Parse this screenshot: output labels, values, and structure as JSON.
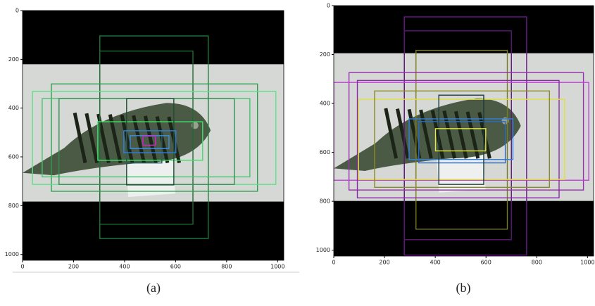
{
  "chart_data": [
    {
      "type": "boxes",
      "caption": "(a)",
      "xlim": [
        0,
        1024
      ],
      "ylim": [
        1024,
        0
      ],
      "xticks": [
        0,
        200,
        400,
        600,
        800,
        1000
      ],
      "yticks": [
        0,
        200,
        400,
        600,
        800,
        1000
      ],
      "boxes": [
        {
          "color": "#1f7a3a",
          "values": [
            303,
            104,
            728,
            935
          ]
        },
        {
          "color": "#1f6b35",
          "values": [
            303,
            166,
            668,
            876
          ]
        },
        {
          "color": "#2e9e4f",
          "values": [
            113,
            301,
            921,
            741
          ]
        },
        {
          "color": "#5fe08a",
          "values": [
            39,
            332,
            993,
            713
          ]
        },
        {
          "color": "#44c56c",
          "values": [
            77,
            361,
            891,
            682
          ]
        },
        {
          "color": "#2f8f4a",
          "values": [
            143,
            361,
            830,
            713
          ]
        },
        {
          "color": "#3ee06a",
          "values": [
            295,
            456,
            706,
            614
          ]
        },
        {
          "color": "#1e4d33",
          "values": [
            408,
            361,
            593,
            715
          ]
        },
        {
          "color": "#245e5a",
          "values": [
            408,
            493,
            546,
            625
          ]
        },
        {
          "color": "#2f7fe0",
          "values": [
            397,
            493,
            601,
            583
          ]
        },
        {
          "color": "#3a8ef0",
          "values": [
            422,
            513,
            574,
            566
          ]
        },
        {
          "color": "#d020d0",
          "values": [
            472,
            515,
            521,
            552
          ]
        }
      ]
    },
    {
      "type": "boxes",
      "caption": "(b)",
      "xlim": [
        0,
        1024
      ],
      "ylim": [
        1024,
        0
      ],
      "xticks": [
        0,
        200,
        400,
        600,
        800,
        1000
      ],
      "yticks": [
        0,
        200,
        400,
        600,
        800,
        1000
      ],
      "boxes": [
        {
          "color": "#6a1a8a",
          "values": [
            278,
            46,
            760,
            1020
          ]
        },
        {
          "color": "#5a1877",
          "values": [
            278,
            103,
            700,
            957
          ]
        },
        {
          "color": "#7a7a20",
          "values": [
            324,
            183,
            684,
            914
          ]
        },
        {
          "color": "#9a30b0",
          "values": [
            60,
            274,
            984,
            754
          ]
        },
        {
          "color": "#c040d8",
          "values": [
            0,
            314,
            1005,
            714
          ]
        },
        {
          "color": "#8a28a8",
          "values": [
            93,
            306,
            888,
            786
          ]
        },
        {
          "color": "#e0e040",
          "values": [
            98,
            383,
            910,
            711
          ]
        },
        {
          "color": "#8a8a28",
          "values": [
            161,
            349,
            850,
            743
          ]
        },
        {
          "color": "#2f7fe0",
          "values": [
            297,
            463,
            706,
            629
          ]
        },
        {
          "color": "#2a6ac0",
          "values": [
            335,
            474,
            676,
            643
          ]
        },
        {
          "color": "#1e3a3a",
          "values": [
            414,
            366,
            591,
            731
          ]
        },
        {
          "color": "#e8e840",
          "values": [
            401,
            503,
            599,
            594
          ]
        }
      ]
    }
  ]
}
